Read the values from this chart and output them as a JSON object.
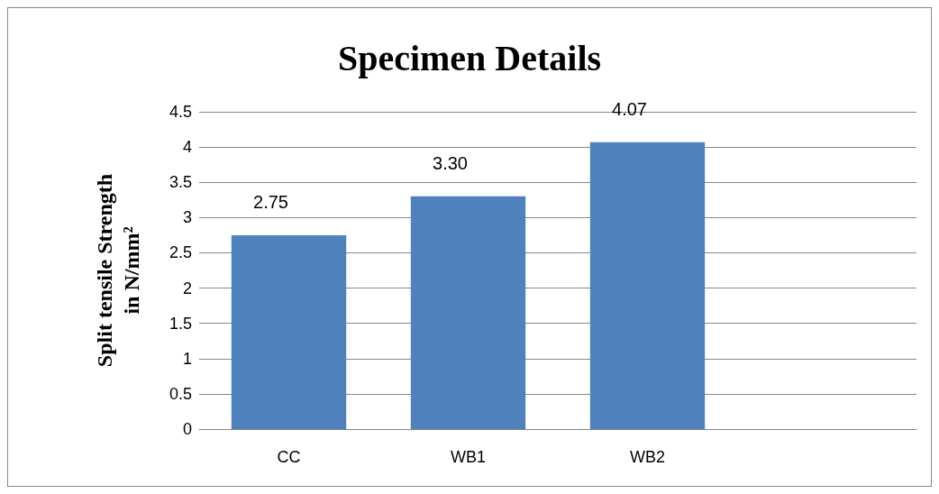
{
  "chart_data": {
    "type": "bar",
    "title": "Specimen Details",
    "ylabel": "Split tensile Strength\nin N/mm²",
    "categories": [
      "CC",
      "WB1",
      "WB2",
      null
    ],
    "values": [
      2.75,
      3.3,
      4.07,
      null
    ],
    "value_labels": [
      "2.75",
      "3.30",
      "4.07",
      null
    ],
    "color": "#4f81bd",
    "ylim": [
      0,
      4.5
    ],
    "yticks": [
      0,
      0.5,
      1,
      1.5,
      2,
      2.5,
      3,
      3.5,
      4,
      4.5
    ],
    "grid": "y"
  }
}
